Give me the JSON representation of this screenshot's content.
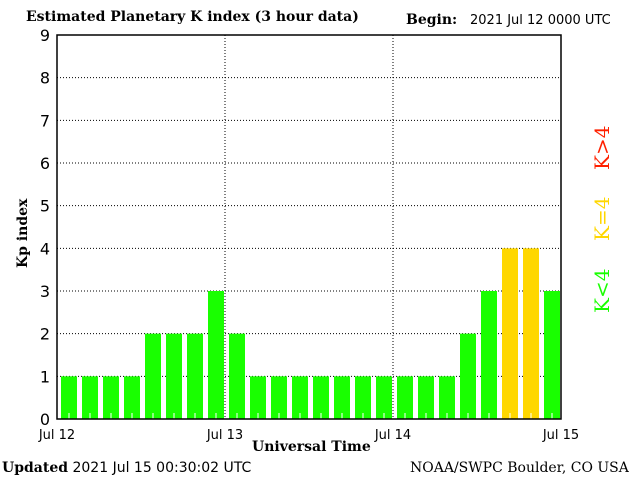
{
  "chart_data": {
    "type": "bar",
    "title": "Estimated Planetary K index (3 hour data)",
    "begin_label": "Begin:",
    "begin_value": "2021 Jul 12 0000 UTC",
    "xlabel": "Universal Time",
    "ylabel": "Kp index",
    "ylim": [
      0,
      9
    ],
    "yticks": [
      "0",
      "1",
      "2",
      "3",
      "4",
      "5",
      "6",
      "7",
      "8",
      "9"
    ],
    "xticks": [
      "Jul 12",
      "Jul 13",
      "Jul 14",
      "Jul 15"
    ],
    "grid": true,
    "interval_hours": 3,
    "values": [
      1,
      1,
      1,
      1,
      2,
      2,
      2,
      3,
      2,
      1,
      1,
      1,
      1,
      1,
      1,
      1,
      1,
      1,
      1,
      2,
      3,
      4,
      4,
      3
    ],
    "colors": {
      "below4": "#19ff00",
      "equal4": "#ffd700",
      "above4": "#ff2000"
    },
    "legend": [
      {
        "label": "K<4",
        "color": "#19ff00"
      },
      {
        "label": "K=4",
        "color": "#ffd700"
      },
      {
        "label": "K>4",
        "color": "#ff2000"
      }
    ]
  },
  "footer": {
    "updated_label": "Updated",
    "updated_value": "2021 Jul 15 00:30:02 UTC",
    "source": "NOAA/SWPC Boulder, CO USA"
  }
}
